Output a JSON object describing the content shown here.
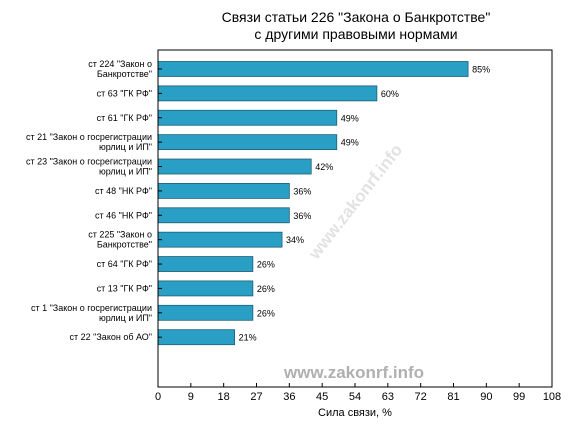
{
  "chart_data": {
    "type": "bar",
    "orientation": "horizontal",
    "title": [
      "Связи статьи 226 \"Закона о Банкротстве\"",
      "с другими правовыми нормами"
    ],
    "xlabel": "Сила связи, %",
    "ylabel": "",
    "xlim": [
      0,
      108
    ],
    "xticks": [
      0,
      9,
      18,
      27,
      36,
      45,
      54,
      63,
      72,
      81,
      90,
      99,
      108
    ],
    "grid": false,
    "legend": "none",
    "bar_color": "#2a9fc5",
    "value_suffix": "%",
    "categories": [
      [
        "ст 224 \"Закон о",
        "Банкротстве\""
      ],
      [
        "ст 63 \"ГК РФ\""
      ],
      [
        "ст 61 \"ГК РФ\""
      ],
      [
        "ст 21 \"Закон о госрегистрации",
        "юрлиц и ИП\""
      ],
      [
        "ст 23 \"Закон о госрегистрации",
        "юрлиц и ИП\""
      ],
      [
        "ст 48 \"НК РФ\""
      ],
      [
        "ст 46 \"НК РФ\""
      ],
      [
        "ст 225 \"Закон о",
        "Банкротстве\""
      ],
      [
        "ст 64 \"ГК РФ\""
      ],
      [
        "ст 13 \"ГК РФ\""
      ],
      [
        "ст 1 \"Закон о госрегистрации",
        "юрлиц и ИП\""
      ],
      [
        "ст 22 \"Закон об АО\""
      ]
    ],
    "values": [
      85,
      60,
      49,
      49,
      42,
      36,
      36,
      34,
      26,
      26,
      26,
      21
    ]
  },
  "watermark": "www.zakonrf.info"
}
